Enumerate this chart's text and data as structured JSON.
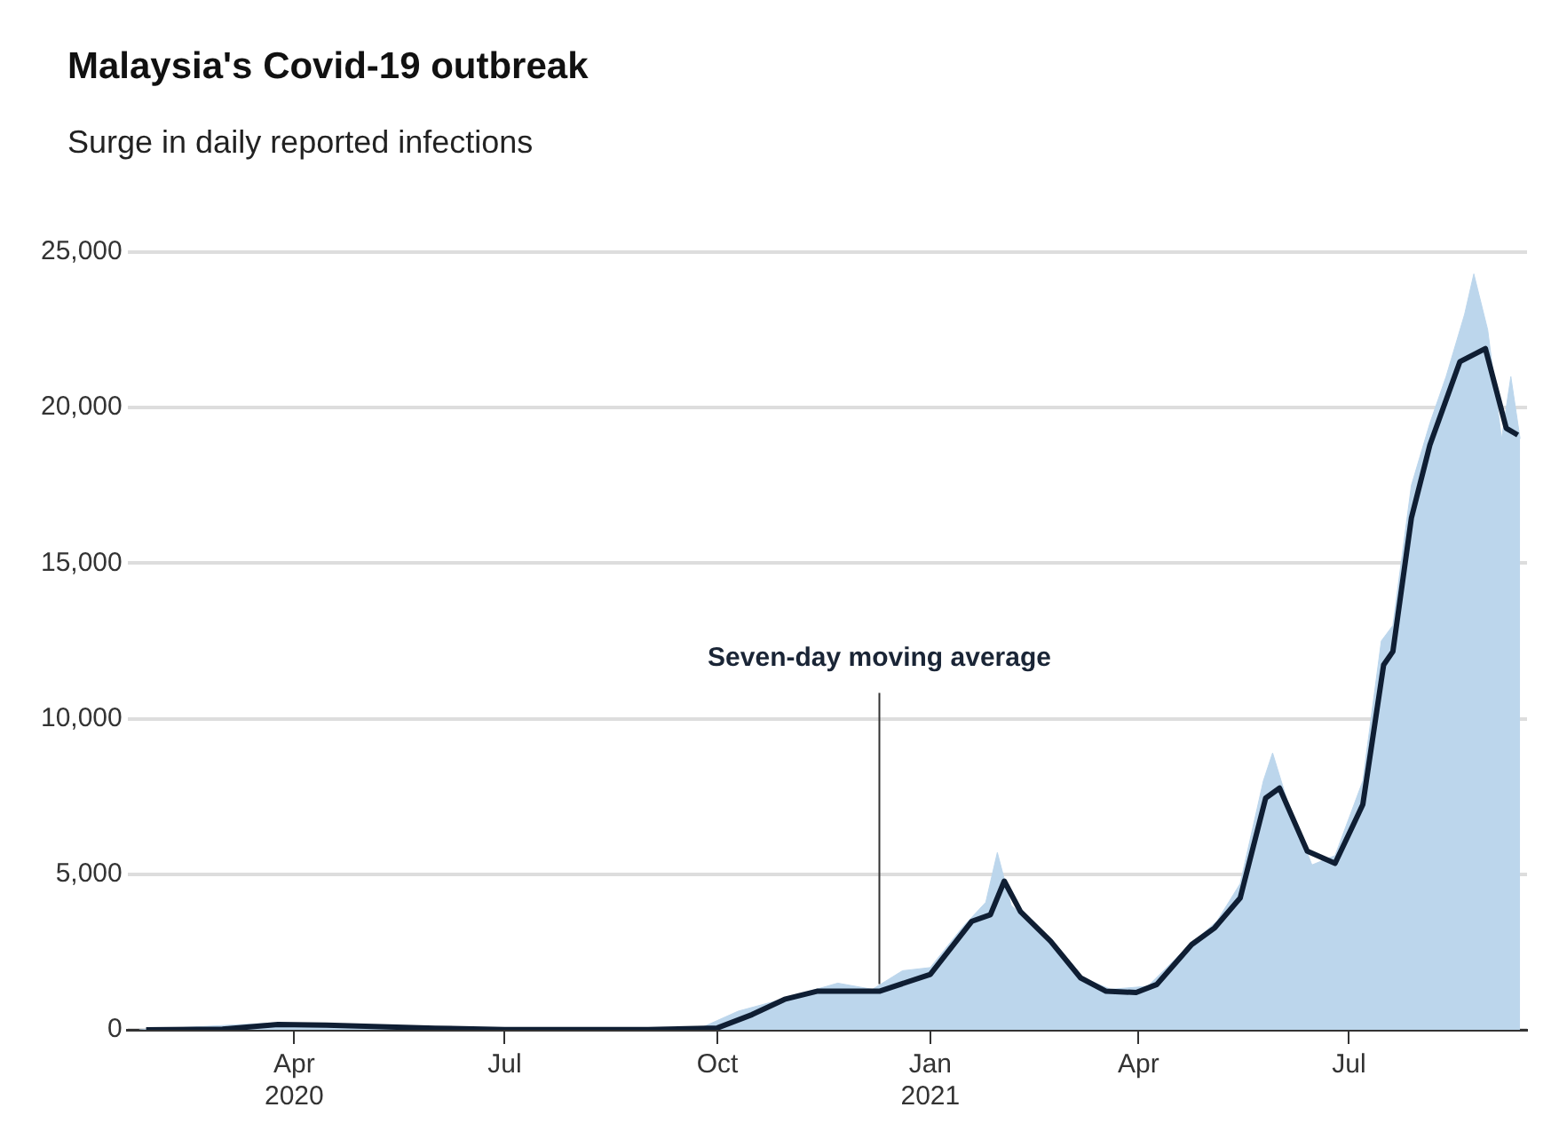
{
  "chart_data": {
    "type": "line",
    "title": "Malaysia's Covid-19 outbreak",
    "subtitle": "Surge in daily reported infections",
    "xlim": [
      "2020-01-20",
      "2021-09-16"
    ],
    "ylim": [
      0,
      25000
    ],
    "xticks": [
      {
        "value": "2020-04-01",
        "label": "Apr\n2020"
      },
      {
        "value": "2020-07-01",
        "label": "Jul"
      },
      {
        "value": "2020-10-01",
        "label": "Oct"
      },
      {
        "value": "2021-01-01",
        "label": "Jan\n2021"
      },
      {
        "value": "2021-04-01",
        "label": "Apr"
      },
      {
        "value": "2021-07-01",
        "label": "Jul"
      }
    ],
    "yticks": [
      0,
      {
        "value": 5000,
        "label": "5,000"
      },
      {
        "value": 10000,
        "label": "10,000"
      },
      {
        "value": 15000,
        "label": "15,000"
      },
      {
        "value": 20000,
        "label": "20,000"
      },
      {
        "value": 25000,
        "label": "25,000"
      }
    ],
    "grid": "y",
    "legend": false,
    "annotations": [
      {
        "text": "Seven-day moving average",
        "x": "2020-12-10",
        "y": 1240
      }
    ],
    "series": [
      {
        "type": "area",
        "color": "#bcd6ec",
        "x": [
          "2020-01-25",
          "2020-03-15",
          "2020-03-27",
          "2020-04-10",
          "2020-05-01",
          "2020-06-05",
          "2020-07-01",
          "2020-09-01",
          "2020-09-25",
          "2020-10-10",
          "2020-10-25",
          "2020-11-08",
          "2020-11-22",
          "2020-12-07",
          "2020-12-20",
          "2021-01-01",
          "2021-01-15",
          "2021-01-25",
          "2021-01-30",
          "2021-02-05",
          "2021-02-20",
          "2021-03-07",
          "2021-03-20",
          "2021-04-05",
          "2021-04-20",
          "2021-05-05",
          "2021-05-15",
          "2021-05-25",
          "2021-05-29",
          "2021-06-05",
          "2021-06-15",
          "2021-06-25",
          "2021-07-07",
          "2021-07-15",
          "2021-07-20",
          "2021-07-28",
          "2021-08-05",
          "2021-08-12",
          "2021-08-20",
          "2021-08-24",
          "2021-08-30",
          "2021-09-05",
          "2021-09-09",
          "2021-09-13"
        ],
        "values": [
          0,
          190,
          230,
          170,
          100,
          90,
          10,
          20,
          100,
          600,
          900,
          1200,
          1500,
          1300,
          1900,
          2000,
          3300,
          4100,
          5700,
          4000,
          3000,
          1700,
          1300,
          1400,
          2500,
          3500,
          4700,
          8000,
          8900,
          7200,
          5300,
          5600,
          8000,
          12500,
          13000,
          17500,
          19500,
          21000,
          23000,
          24300,
          22500,
          19000,
          21000,
          19000
        ]
      },
      {
        "color": "#0f1e33",
        "x": [
          "2020-01-28",
          "2020-03-01",
          "2020-03-25",
          "2020-04-15",
          "2020-06-01",
          "2020-07-01",
          "2020-09-01",
          "2020-10-01",
          "2020-10-16",
          "2020-10-30",
          "2020-11-13",
          "2020-12-10",
          "2021-01-01",
          "2021-01-19",
          "2021-01-27",
          "2021-02-02",
          "2021-02-09",
          "2021-02-22",
          "2021-03-07",
          "2021-03-18",
          "2021-03-31",
          "2021-04-09",
          "2021-04-24",
          "2021-05-04",
          "2021-05-15",
          "2021-05-26",
          "2021-06-01",
          "2021-06-13",
          "2021-06-25",
          "2021-07-07",
          "2021-07-16",
          "2021-07-20",
          "2021-07-28",
          "2021-08-05",
          "2021-08-18",
          "2021-08-29",
          "2021-09-07",
          "2021-09-12"
        ],
        "values": [
          0,
          20,
          170,
          150,
          50,
          10,
          10,
          60,
          490,
          980,
          1240,
          1240,
          1780,
          3490,
          3700,
          4780,
          3800,
          2850,
          1670,
          1240,
          1200,
          1460,
          2740,
          3280,
          4240,
          7450,
          7770,
          5740,
          5350,
          7240,
          11730,
          12160,
          16450,
          18800,
          21480,
          21900,
          19340,
          19120
        ]
      }
    ]
  }
}
